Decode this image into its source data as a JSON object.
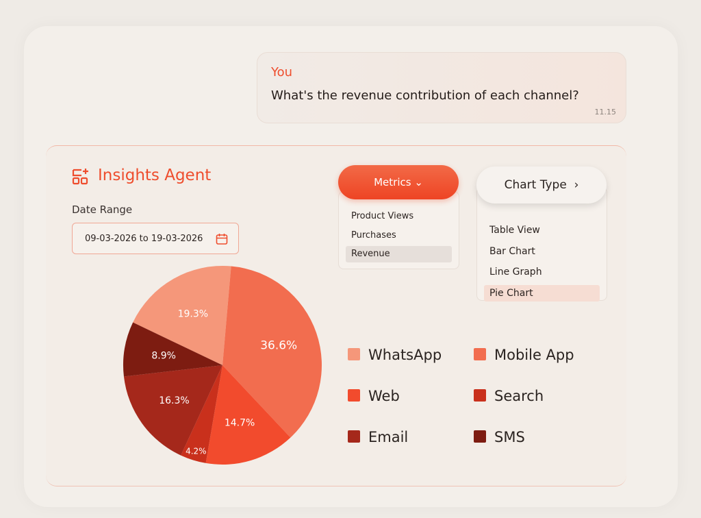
{
  "message": {
    "sender": "You",
    "text": "What's the revenue contribution of each channel?",
    "time": "11.15"
  },
  "panel": {
    "title": "Insights Agent",
    "date_range_label": "Date Range",
    "date_range": "09-03-2026 to 19-03-2026",
    "metrics": {
      "label": "Metrics",
      "options": [
        "Product Views",
        "Purchases",
        "Revenue"
      ]
    },
    "chart_type": {
      "label": "Chart Type",
      "options": [
        "Table View",
        "Bar Chart",
        "Line Graph",
        "Pie Chart"
      ]
    }
  },
  "chart_data": {
    "type": "pie",
    "categories": [
      "WhatsApp",
      "Mobile App",
      "Web",
      "Search",
      "Email",
      "SMS"
    ],
    "values": [
      19.3,
      36.6,
      14.7,
      4.2,
      16.3,
      8.9
    ],
    "value_labels": [
      "19.3%",
      "36.6%",
      "14.7%",
      "4.2%",
      "16.3%",
      "8.9%"
    ],
    "colors": [
      "#f5977a",
      "#f26d4f",
      "#f24b2d",
      "#c9301c",
      "#a5281b",
      "#7d1c11"
    ]
  }
}
